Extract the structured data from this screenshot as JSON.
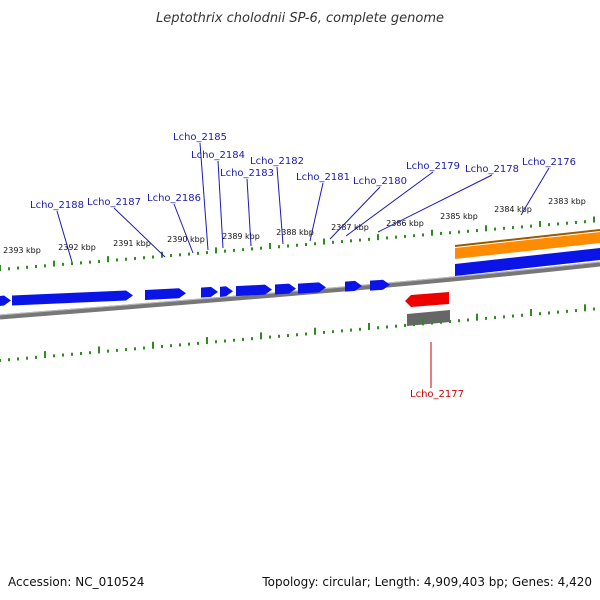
{
  "title": "Leptothrix cholodnii SP-6, complete genome",
  "footer": {
    "accession": "Accession: NC_010524",
    "summary": "Topology: circular; Length: 4,909,403 bp; Genes: 4,420"
  },
  "colors": {
    "forward_gene": "#0a14e6",
    "reverse_gene": "#ee0000",
    "cds_band": "#ff8c00",
    "backbone": "#777777",
    "ticks": "#2e8b1f",
    "label_forward": "#1a1ab4",
    "label_reverse": "#cc0000"
  },
  "ticks": [
    "2393 kbp",
    "2392 kbp",
    "2391 kbp",
    "2390 kbp",
    "2389 kbp",
    "2388 kbp",
    "2387 kbp",
    "2386 kbp",
    "2385 kbp",
    "2384 kbp",
    "2383 kbp"
  ],
  "genes": [
    {
      "name": "Lcho_2188",
      "strand": "+"
    },
    {
      "name": "Lcho_2187",
      "strand": "+"
    },
    {
      "name": "Lcho_2186",
      "strand": "+"
    },
    {
      "name": "Lcho_2185",
      "strand": "+"
    },
    {
      "name": "Lcho_2184",
      "strand": "+"
    },
    {
      "name": "Lcho_2183",
      "strand": "+"
    },
    {
      "name": "Lcho_2182",
      "strand": "+"
    },
    {
      "name": "Lcho_2181",
      "strand": "+"
    },
    {
      "name": "Lcho_2180",
      "strand": "+"
    },
    {
      "name": "Lcho_2179",
      "strand": "+"
    },
    {
      "name": "Lcho_2178",
      "strand": "+"
    },
    {
      "name": "Lcho_2176",
      "strand": "+"
    },
    {
      "name": "Lcho_2177",
      "strand": "-"
    }
  ]
}
